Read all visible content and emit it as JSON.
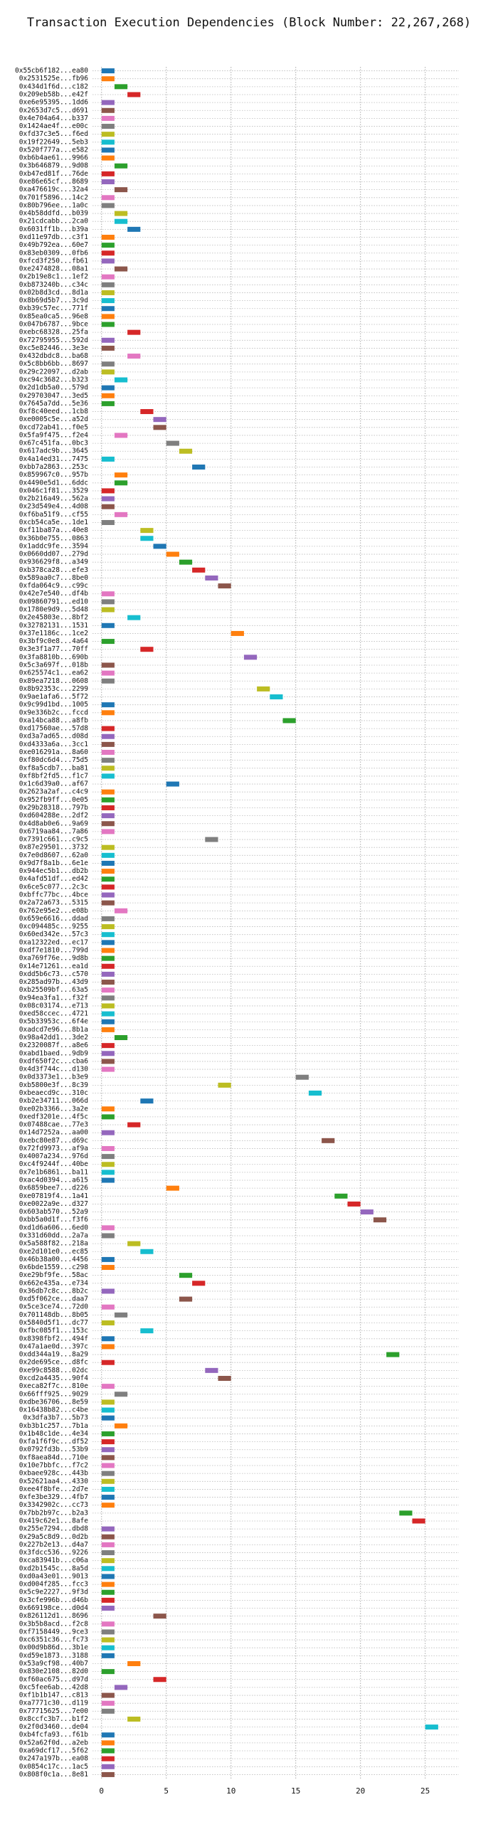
{
  "chart_data": {
    "type": "gantt",
    "title": "Transaction Execution Dependencies (Block Number: 22,267,268)",
    "categories": [
      "0x55cb6f182...ea80",
      "0x2531525e...fb96",
      "0x434d1f6d...c182",
      "0x209eb58b...e42f",
      "0xe6e95395...1dd6",
      "0x2653d7c5...d691",
      "0x4e704a64...b337",
      "0x1424ae4f...e00c",
      "0xfd37c3e5...f6ed",
      "0x19f22649...5eb3",
      "0x520f777a...e582",
      "0xb6b4ae61...9966",
      "0x3b646879...9d08",
      "0xb47ed81f...76de",
      "0xe86e65cf...8689",
      "0xa476619c...32a4",
      "0x701f5896...14c2",
      "0x80b796ee...1a0c",
      "0x4b58ddfd...b039",
      "0x21cdcabb...2ca0",
      "0x6031ff1b...b39a",
      "0xd11e97db...c3f1",
      "0x49b792ea...60e7",
      "0x83eb0309...0fb6",
      "0xfcd3f250...fb61",
      "0xe2474828...08a1",
      "0x2b19e8c1...1ef2",
      "0xb873240b...c34c",
      "0x02b8d3cd...8d1a",
      "0x8b69d5b7...3c9d",
      "0xb39c57ec...771f",
      "0x85ea0ca5...96e8",
      "0x047b6787...9bce",
      "0xebc68328...25fa",
      "0x72795955...592d",
      "0xc5e82446...3e3e",
      "0x432dbdc8...ba68",
      "0x5c8bb6bb...8697",
      "0x29c22097...d2ab",
      "0xc94c3682...b323",
      "0x2d1db5a0...579d",
      "0x29703047...3ed5",
      "0x7645a7dd...5e36",
      "0xf8c40eed...1cb8",
      "0xe0005c5e...a52d",
      "0xcd72ab41...f0e5",
      "0x5fa9f475...f2e4",
      "0x67c451fa...0bc3",
      "0x617adc9b...3645",
      "0x4a14ed31...7475",
      "0xbb7a2863...253c",
      "0x859967c0...957b",
      "0x4490e5d1...6ddc",
      "0x046c1f81...3529",
      "0x2b216a49...562a",
      "0x23d549e4...4d08",
      "0xf6ba51f9...cf55",
      "0xcb54ca5e...1de1",
      "0xf11ba87a...40e8",
      "0x36b0e755...0863",
      "0x1addc9fe...3594",
      "0x0660dd07...279d",
      "0x936629f8...a349",
      "0xb378ca28...efe3",
      "0x589aa0c7...8be0",
      "0xfda064c9...c99c",
      "0x42e7e540...df4b",
      "0x09860791...ed10",
      "0x1780e9d9...5d48",
      "0x2e45803e...8bf2",
      "0x32782131...1531",
      "0x37e1186c...1ce2",
      "0x3bf9c0e8...4a64",
      "0x3e3f1a77...70ff",
      "0x3fa8810b...690b",
      "0x5c3a697f...018b",
      "0x625574c1...ea62",
      "0x89ea7218...0608",
      "0x8b92353c...2299",
      "0x9ae1afa6...5f72",
      "0x9c99d1bd...1005",
      "0x9e336b2c...fccd",
      "0xa14bca88...a8fb",
      "0xd17560ae...57d8",
      "0xd3a7ad65...d08d",
      "0xd4333a6a...3cc1",
      "0xe016291a...8a60",
      "0xf80dc6d4...75d5",
      "0xf8a5cdb7...ba81",
      "0xf8bf2fd5...f1c7",
      "0x1c6d39a0...af67",
      "0x2623a2af...c4c9",
      "0x952fb9ff...0e05",
      "0x29b28318...797b",
      "0xd604288e...2df2",
      "0x4d8ab0e6...9a69",
      "0x6719aa84...7a86",
      "0x7391c661...c9c5",
      "0x87e29501...3732",
      "0x7e0d8607...62a0",
      "0x9d7f8a1b...6e1e",
      "0x944ec5b1...db2b",
      "0x4afd51df...ed42",
      "0x6ce5c077...2c3c",
      "0xbffc77bc...4bce",
      "0x2a72a673...5315",
      "0x762e95e2...e08b",
      "0x659e6616...ddad",
      "0xc094485c...9255",
      "0x60ed342e...57c3",
      "0xa12322ed...ec17",
      "0xdf7e1810...799d",
      "0xa769f76e...9d8b",
      "0x14e71261...ea1d",
      "0xdd5b6c73...c570",
      "0x285ad97b...43d9",
      "0xb25509bf...63a5",
      "0x94ea3fa1...f32f",
      "0x08c03174...e713",
      "0xed58ccec...4721",
      "0x5b33953c...6f4e",
      "0xadcd7e96...8b1a",
      "0x98a42dd1...3de2",
      "0x2320087f...a8e6",
      "0xabd1baed...9db9",
      "0xdf650f2c...cba6",
      "0x4d3f744c...d130",
      "0x0d3373e1...b3e9",
      "0xb5800e3f...8c39",
      "0xbeaecd9c...310c",
      "0xb2e34711...066d",
      "0xe02b3366...3a2e",
      "0xedf3201e...4f5c",
      "0x07488cae...77e3",
      "0x14d7252a...aa00",
      "0xebc80e87...d69c",
      "0x72fd9973...af9a",
      "0x4007a234...976d",
      "0xc4f9244f...40be",
      "0x7e1b6861...ba11",
      "0xac4d0394...a615",
      "0x6859bee7...d226",
      "0xe07819f4...1a41",
      "0xe0022a9e...d327",
      "0x603ab570...52a9",
      "0xbb5a0d1f...f3f6",
      "0xd1d6a606...6ed0",
      "0x331d60dd...2a7a",
      "0x5a588f82...218a",
      "0xe2d101e0...ec85",
      "0x46b38a00...4456",
      "0x6bde1559...c298",
      "0xe29bf9fe...58ac",
      "0x662e435a...e734",
      "0x36db7c8c...8b2c",
      "0xd5f062ce...daa7",
      "0x5ce3ce74...72d0",
      "0x701148db...8b05",
      "0x5840d5f1...dc77",
      "0xfbc085f1...153c",
      "0x8398fbf2...494f",
      "0x47a1ae0d...397c",
      "0xdd344a19...8a29",
      "0x2de695ce...d8fc",
      "0xe99c8588...02dc",
      "0xcd2a4435...90f4",
      "0xeca82f7c...810e",
      "0x66fff925...9029",
      "0xdbe36706...8e59",
      "0x16438b82...c4be",
      "0x3dfa3b7...5b73",
      "0xb3b1c257...7b1a",
      "0x1b48c1de...4e34",
      "0xfa1f6f9c...df52",
      "0x0792fd3b...53b9",
      "0xf8aea84d...710e",
      "0x10e7bbfc...f7c2",
      "0xbaee928c...443b",
      "0x52621aa4...4330",
      "0xee4f8bfe...2d7e",
      "0xfe3be329...4fb7",
      "0x3342902c...cc73",
      "0x7bb2b97c...b2a3",
      "0x419c62e1...8afe",
      "0x255e7294...dbd8",
      "0x29a5c8d9...0d2b",
      "0x227b2e13...d4a7",
      "0x3fdcc536...9226",
      "0xca83941b...c06a",
      "0xd2b1545c...8a5d",
      "0xd0a43e01...9013",
      "0xd004f285...fcc3",
      "0x5c9e2227...9f3d",
      "0x3cfe996b...d46b",
      "0x669198ce...d0d4",
      "0x826112d1...8696",
      "0x3b5b8acd...f2c8",
      "0xf7158449...9ce3",
      "0xc6351c36...fc73",
      "0x00d9b86d...3b1e",
      "0xd59e1873...3188",
      "0x53a9cf98...40b7",
      "0x830e2108...82d0",
      "0xf60ac675...d97d",
      "0xc5fee6ab...42d8",
      "0xf1b1b147...c813",
      "0xa7771c30...d119",
      "0x77715625...7e00",
      "0x8ccfc3b7...b1f2",
      "0x2f0d3460...de04",
      "0xb4fcfa93...f61b",
      "0x52a62f0d...a2eb",
      "0xa69dcf17...5f62",
      "0x247a197b...ea08",
      "0x0854c17c...1ac5",
      "0x808f0c1a...8e81"
    ],
    "values": [
      0,
      0,
      1,
      2,
      0,
      0,
      0,
      0,
      0,
      0,
      0,
      0,
      1,
      0,
      0,
      1,
      0,
      0,
      1,
      1,
      2,
      0,
      0,
      0,
      0,
      1,
      0,
      0,
      0,
      0,
      0,
      0,
      0,
      2,
      0,
      0,
      2,
      0,
      0,
      1,
      0,
      0,
      0,
      3,
      4,
      4,
      1,
      5,
      6,
      0,
      7,
      1,
      1,
      0,
      0,
      0,
      1,
      0,
      3,
      3,
      4,
      5,
      6,
      7,
      8,
      9,
      0,
      0,
      0,
      2,
      0,
      10,
      0,
      3,
      11,
      0,
      0,
      0,
      12,
      13,
      0,
      0,
      14,
      0,
      0,
      0,
      0,
      0,
      0,
      0,
      5,
      0,
      0,
      0,
      0,
      0,
      0,
      8,
      0,
      0,
      0,
      0,
      0,
      0,
      0,
      0,
      1,
      0,
      0,
      0,
      0,
      0,
      0,
      0,
      0,
      0,
      0,
      0,
      0,
      0,
      0,
      0,
      1,
      0,
      0,
      0,
      0,
      15,
      9,
      16,
      3,
      0,
      0,
      2,
      0,
      17,
      0,
      0,
      0,
      0,
      0,
      5,
      18,
      19,
      20,
      21,
      0,
      0,
      2,
      3,
      0,
      0,
      6,
      7,
      0,
      6,
      0,
      1,
      0,
      3,
      0,
      0,
      22,
      0,
      8,
      9,
      0,
      1,
      0,
      0,
      0,
      1,
      0,
      0,
      0,
      0,
      0,
      0,
      0,
      0,
      0,
      0,
      23,
      24,
      0,
      0,
      0,
      0,
      0,
      0,
      0,
      0,
      0,
      0,
      0,
      4,
      0,
      0,
      0,
      0,
      0,
      2,
      0,
      4,
      1,
      0,
      0,
      0,
      2,
      25,
      0,
      0,
      0,
      0,
      0,
      0
    ],
    "palette": [
      "#1f77b4",
      "#ff7f0e",
      "#2ca02c",
      "#d62728",
      "#9467bd",
      "#8c564b",
      "#e377c2",
      "#7f7f7f",
      "#bcbd22",
      "#17becf"
    ],
    "xlim": [
      -0.7,
      27.6
    ],
    "xticks": [
      0,
      5,
      10,
      15,
      20,
      25
    ],
    "grid": true
  }
}
